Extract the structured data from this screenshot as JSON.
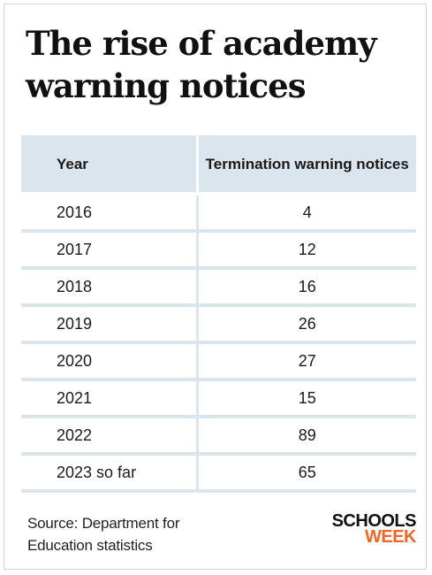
{
  "title": "The rise of academy warning notices",
  "chart_data": {
    "type": "table",
    "columns": [
      "Year",
      "Termination warning notices"
    ],
    "rows": [
      {
        "year": "2016",
        "notices": 4
      },
      {
        "year": "2017",
        "notices": 12
      },
      {
        "year": "2018",
        "notices": 16
      },
      {
        "year": "2019",
        "notices": 26
      },
      {
        "year": "2020",
        "notices": 27
      },
      {
        "year": "2021",
        "notices": 15
      },
      {
        "year": "2022",
        "notices": 89
      },
      {
        "year": "2023 so far",
        "notices": 65
      }
    ]
  },
  "source": {
    "line1": "Source: Department for",
    "line2": "Education statistics"
  },
  "logo": {
    "line1": "SCHOOLS",
    "line2": "WEEK",
    "primary_color": "#111111",
    "accent_color": "#f26522"
  },
  "colors": {
    "header_background": "#dbe5ee",
    "row_separator": "#dbe5ee"
  }
}
